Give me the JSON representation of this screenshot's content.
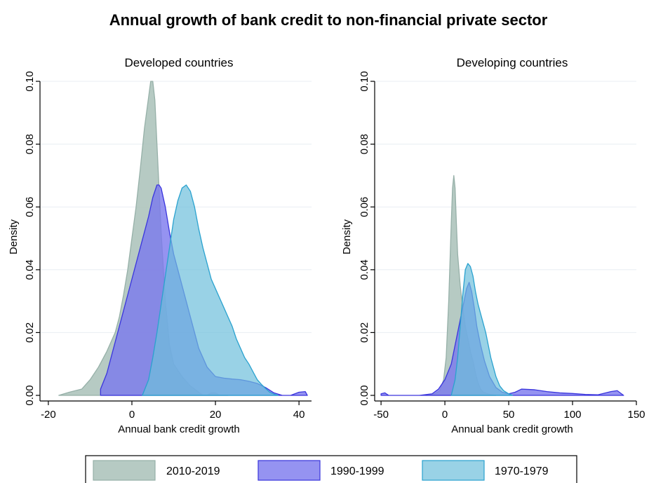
{
  "colors": {
    "s2010": "#a9c1b9",
    "s2010_edge": "#96b0a8",
    "s1990": "#7b78ee",
    "s1990_edge": "#3a35dd",
    "s1970": "#6dbfdb",
    "s1970_edge": "#2aa2cf",
    "grid": "#e8eef3"
  },
  "chart_data": {
    "title": "Annual growth of bank credit to non-financial private sector",
    "type": "area",
    "legend": {
      "position": "bottom",
      "entries": [
        "2010-2019",
        "1990-1999",
        "1970-1979"
      ]
    },
    "panels": [
      {
        "title": "Developed countries",
        "xlabel": "Annual bank credit growth",
        "ylabel": "Density",
        "xlim": [
          -22,
          43
        ],
        "ylim": [
          0,
          0.1
        ],
        "xticks": [
          -20,
          0,
          20,
          40
        ],
        "yticks": [
          0.0,
          0.02,
          0.04,
          0.06,
          0.08,
          0.1
        ],
        "ytick_labels": [
          "0.00",
          "0.02",
          "0.04",
          "0.06",
          "0.08",
          "0.10"
        ],
        "grid": true,
        "series": [
          {
            "name": "2010-2019",
            "x": [
              -17.5,
              -15,
              -12,
              -10,
              -8,
              -6,
              -4,
              -3,
              -2,
              -1,
              0,
              1,
              2,
              3,
              4,
              4.5,
              5,
              5.5,
              6,
              7,
              8,
              9,
              10,
              12,
              14,
              16,
              17,
              18,
              19,
              20,
              21,
              22,
              23
            ],
            "y": [
              0.0,
              0.001,
              0.002,
              0.005,
              0.009,
              0.014,
              0.02,
              0.025,
              0.032,
              0.04,
              0.05,
              0.06,
              0.072,
              0.085,
              0.095,
              0.1,
              0.1,
              0.094,
              0.08,
              0.052,
              0.03,
              0.016,
              0.01,
              0.006,
              0.003,
              0.001,
              0.0,
              0.0,
              0.0008,
              0.0008,
              0.0,
              0.0,
              0.0
            ]
          },
          {
            "name": "1990-1999",
            "x": [
              -7.5,
              -6,
              -4,
              -2,
              0,
              2,
              4,
              5,
              6,
              6.5,
              7,
              8,
              9,
              10,
              11,
              12,
              14,
              16,
              18,
              20,
              22,
              24,
              26,
              28,
              30,
              32,
              34,
              36,
              38,
              40,
              41.5,
              42
            ],
            "y": [
              0.002,
              0.007,
              0.017,
              0.027,
              0.037,
              0.047,
              0.057,
              0.063,
              0.067,
              0.067,
              0.066,
              0.06,
              0.052,
              0.045,
              0.04,
              0.035,
              0.025,
              0.015,
              0.009,
              0.006,
              0.0055,
              0.0052,
              0.005,
              0.0045,
              0.0038,
              0.0025,
              0.0008,
              0.0,
              0.0,
              0.001,
              0.0012,
              0.0
            ]
          },
          {
            "name": "1970-1979",
            "x": [
              2.5,
              4,
              5,
              6,
              7,
              8,
              9,
              10,
              11,
              12,
              13,
              14,
              15,
              16,
              17,
              18,
              19,
              20,
              21,
              22,
              23,
              24,
              25,
              26,
              27,
              28,
              29,
              30,
              31,
              32,
              33,
              34,
              35
            ],
            "y": [
              0.0,
              0.005,
              0.012,
              0.02,
              0.029,
              0.038,
              0.047,
              0.056,
              0.062,
              0.066,
              0.067,
              0.065,
              0.06,
              0.053,
              0.047,
              0.042,
              0.037,
              0.034,
              0.031,
              0.028,
              0.025,
              0.022,
              0.018,
              0.015,
              0.012,
              0.01,
              0.0075,
              0.005,
              0.0035,
              0.0022,
              0.001,
              0.0004,
              0.0
            ]
          }
        ]
      },
      {
        "title": "Developing countries",
        "xlabel": "Annual bank credit growth",
        "ylabel": "Density",
        "xlim": [
          -55,
          150
        ],
        "ylim": [
          0,
          0.1
        ],
        "xticks": [
          -50,
          0,
          50,
          100,
          150
        ],
        "yticks": [
          0.0,
          0.02,
          0.04,
          0.06,
          0.08,
          0.1
        ],
        "ytick_labels": [
          "0.00",
          "0.02",
          "0.04",
          "0.06",
          "0.08",
          "0.10"
        ],
        "grid": true,
        "series": [
          {
            "name": "2010-2019",
            "x": [
              -15,
              -8,
              -4,
              -1,
              1,
              3,
              5,
              6,
              7,
              8,
              9,
              10,
              12,
              14,
              16,
              18,
              20,
              22,
              24,
              26,
              28,
              30,
              35,
              40
            ],
            "y": [
              0.0,
              0.0005,
              0.0015,
              0.005,
              0.012,
              0.03,
              0.055,
              0.066,
              0.07,
              0.066,
              0.055,
              0.045,
              0.035,
              0.028,
              0.022,
              0.018,
              0.014,
              0.011,
              0.007,
              0.004,
              0.002,
              0.001,
              0.0003,
              0.0
            ]
          },
          {
            "name": "1990-1999",
            "x": [
              -50,
              -47,
              -44,
              -40,
              -20,
              -10,
              -5,
              0,
              5,
              10,
              13,
              15,
              17,
              19,
              21,
              23,
              25,
              28,
              31,
              35,
              40,
              45,
              50,
              55,
              60,
              70,
              80,
              90,
              100,
              110,
              120,
              130,
              135,
              140
            ],
            "y": [
              0.0005,
              0.0008,
              0.0,
              0.0,
              0.0,
              0.0005,
              0.002,
              0.005,
              0.01,
              0.02,
              0.026,
              0.03,
              0.034,
              0.036,
              0.033,
              0.028,
              0.022,
              0.016,
              0.011,
              0.006,
              0.0025,
              0.001,
              0.0005,
              0.001,
              0.002,
              0.0018,
              0.0012,
              0.0008,
              0.0006,
              0.0003,
              0.0002,
              0.0012,
              0.0015,
              0.0
            ]
          },
          {
            "name": "1970-1979",
            "x": [
              5,
              8,
              10,
              12,
              14,
              16,
              18,
              20,
              22,
              24,
              26,
              28,
              30,
              32,
              34,
              36,
              38,
              40,
              43,
              46,
              50,
              53
            ],
            "y": [
              0.0,
              0.005,
              0.012,
              0.022,
              0.032,
              0.04,
              0.042,
              0.041,
              0.038,
              0.033,
              0.029,
              0.026,
              0.023,
              0.02,
              0.016,
              0.012,
              0.009,
              0.006,
              0.003,
              0.0015,
              0.0005,
              0.0
            ]
          }
        ]
      }
    ]
  }
}
